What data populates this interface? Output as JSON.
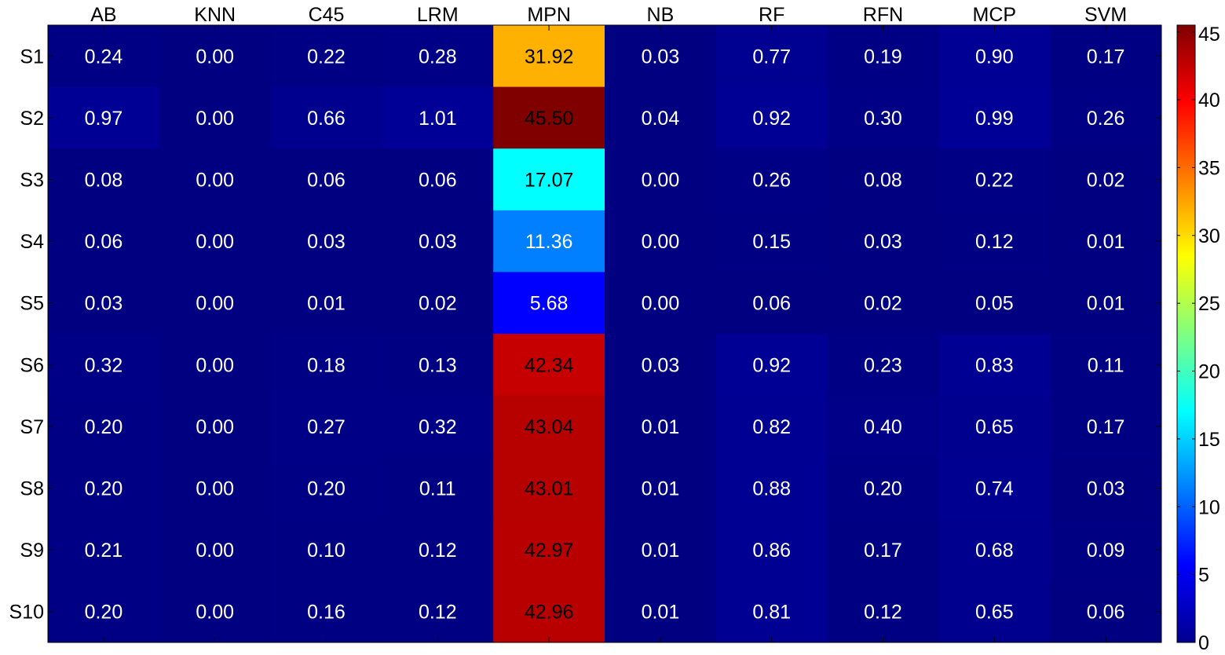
{
  "chart_data": {
    "type": "heatmap",
    "title": "",
    "xlabel": "",
    "ylabel": "",
    "columns": [
      "AB",
      "KNN",
      "C45",
      "LRM",
      "MPN",
      "NB",
      "RF",
      "RFN",
      "MCP",
      "SVM"
    ],
    "rows": [
      "S1",
      "S2",
      "S3",
      "S4",
      "S5",
      "S6",
      "S7",
      "S8",
      "S9",
      "S10"
    ],
    "values": [
      [
        0.24,
        0.0,
        0.22,
        0.28,
        31.92,
        0.03,
        0.77,
        0.19,
        0.9,
        0.17
      ],
      [
        0.97,
        0.0,
        0.66,
        1.01,
        45.5,
        0.04,
        0.92,
        0.3,
        0.99,
        0.26
      ],
      [
        0.08,
        0.0,
        0.06,
        0.06,
        17.07,
        0.0,
        0.26,
        0.08,
        0.22,
        0.02
      ],
      [
        0.06,
        0.0,
        0.03,
        0.03,
        11.36,
        0.0,
        0.15,
        0.03,
        0.12,
        0.01
      ],
      [
        0.03,
        0.0,
        0.01,
        0.02,
        5.68,
        0.0,
        0.06,
        0.02,
        0.05,
        0.01
      ],
      [
        0.32,
        0.0,
        0.18,
        0.13,
        42.34,
        0.03,
        0.92,
        0.23,
        0.83,
        0.11
      ],
      [
        0.2,
        0.0,
        0.27,
        0.32,
        43.04,
        0.01,
        0.82,
        0.4,
        0.65,
        0.17
      ],
      [
        0.2,
        0.0,
        0.2,
        0.11,
        43.01,
        0.01,
        0.88,
        0.2,
        0.74,
        0.03
      ],
      [
        0.21,
        0.0,
        0.1,
        0.12,
        42.97,
        0.01,
        0.86,
        0.17,
        0.68,
        0.09
      ],
      [
        0.2,
        0.0,
        0.16,
        0.12,
        42.96,
        0.01,
        0.81,
        0.12,
        0.65,
        0.06
      ]
    ],
    "colormap": "jet",
    "color_range": [
      0,
      45.5
    ],
    "colorbar_ticks": [
      0,
      5,
      10,
      15,
      20,
      25,
      30,
      35,
      40,
      45
    ],
    "colorbar_position": "right",
    "cell_label_colors": {
      "light": "#ffffff",
      "dark": "#000000"
    }
  }
}
